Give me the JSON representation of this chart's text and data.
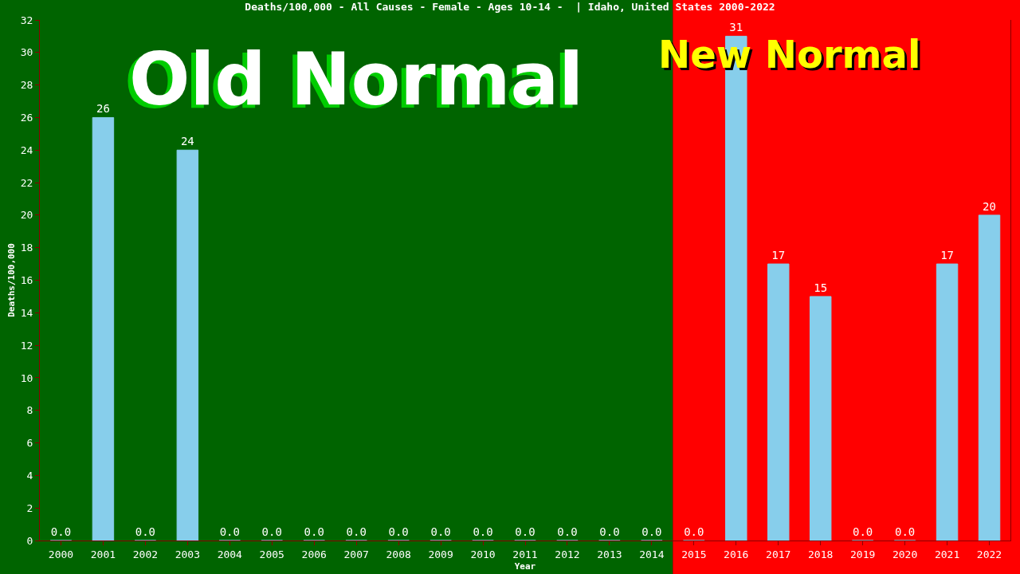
{
  "chart_data": {
    "type": "bar",
    "title": "Deaths/100,000 - All Causes - Female - Ages 10-14 -  | Idaho, United States 2000-2022",
    "xlabel": "Year",
    "ylabel": "Deaths/100,000",
    "categories": [
      "2000",
      "2001",
      "2002",
      "2003",
      "2004",
      "2005",
      "2006",
      "2007",
      "2008",
      "2009",
      "2010",
      "2011",
      "2012",
      "2013",
      "2014",
      "2015",
      "2016",
      "2017",
      "2018",
      "2019",
      "2020",
      "2021",
      "2022"
    ],
    "values": [
      0,
      26,
      0,
      24,
      0,
      0,
      0,
      0,
      0,
      0,
      0,
      0,
      0,
      0,
      0,
      0,
      31,
      17,
      15,
      0,
      0,
      17,
      20
    ],
    "value_labels": [
      "0.0",
      "26",
      "0.0",
      "24",
      "0.0",
      "0.0",
      "0.0",
      "0.0",
      "0.0",
      "0.0",
      "0.0",
      "0.0",
      "0.0",
      "0.0",
      "0.0",
      "0.0",
      "31",
      "17",
      "15",
      "0.0",
      "0.0",
      "17",
      "20"
    ],
    "color": "#87ceeb",
    "ylim": [
      0,
      32
    ],
    "yticks": [
      0,
      2,
      4,
      6,
      8,
      10,
      12,
      14,
      16,
      18,
      20,
      22,
      24,
      26,
      28,
      30,
      32
    ],
    "grid": false,
    "legend": false,
    "bands": [
      {
        "axis": "x",
        "from": "2000",
        "to": "2014",
        "label": "Old Normal",
        "color": "#006400"
      },
      {
        "axis": "x",
        "from": "2015",
        "to": "2022",
        "label": "New Normal",
        "color": "#ff0000"
      }
    ]
  }
}
